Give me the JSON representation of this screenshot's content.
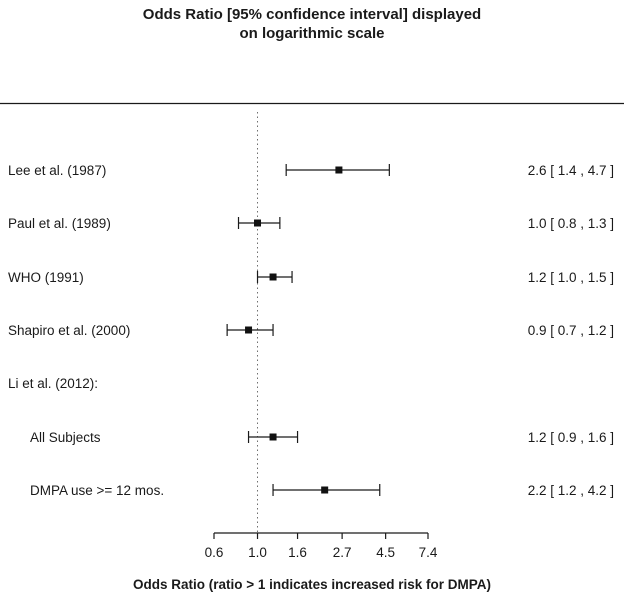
{
  "chart_data": {
    "type": "forest",
    "x_scale": "log",
    "title_lines": [
      "Odds Ratio [95% confidence interval] displayed",
      "on logarithmic scale"
    ],
    "xlabel": "Odds Ratio (ratio > 1 indicates increased risk for DMPA)",
    "x_ticks": [
      0.6,
      1.0,
      1.6,
      2.7,
      4.5,
      7.4
    ],
    "x_range": [
      0.6,
      7.4
    ],
    "reference_line": 1.0,
    "rows": [
      {
        "label": "Lee et al. (1987)",
        "indent": false,
        "or": 2.6,
        "ci_low": 1.4,
        "ci_high": 4.7,
        "display": "2.6 [ 1.4 , 4.7 ]"
      },
      {
        "label": "Paul et al. (1989)",
        "indent": false,
        "or": 1.0,
        "ci_low": 0.8,
        "ci_high": 1.3,
        "display": "1.0 [ 0.8 , 1.3 ]"
      },
      {
        "label": "WHO (1991)",
        "indent": false,
        "or": 1.2,
        "ci_low": 1.0,
        "ci_high": 1.5,
        "display": "1.2 [ 1.0 , 1.5 ]"
      },
      {
        "label": "Shapiro et al. (2000)",
        "indent": false,
        "or": 0.9,
        "ci_low": 0.7,
        "ci_high": 1.2,
        "display": "0.9 [ 0.7 , 1.2 ]"
      },
      {
        "label": "Li et al. (2012):",
        "indent": false,
        "or": null,
        "ci_low": null,
        "ci_high": null,
        "display": null
      },
      {
        "label": "All Subjects",
        "indent": true,
        "or": 1.2,
        "ci_low": 0.9,
        "ci_high": 1.6,
        "display": "1.2 [ 0.9 , 1.6 ]"
      },
      {
        "label": "DMPA use >= 12 mos.",
        "indent": true,
        "or": 2.2,
        "ci_low": 1.2,
        "ci_high": 4.2,
        "display": "2.2 [ 1.2 , 4.2 ]"
      }
    ]
  },
  "colors": {
    "text": "#1a1a1a",
    "line": "#1a1a1a",
    "marker": "#111111",
    "reference": "#6e6e6e",
    "background": "#ffffff"
  }
}
